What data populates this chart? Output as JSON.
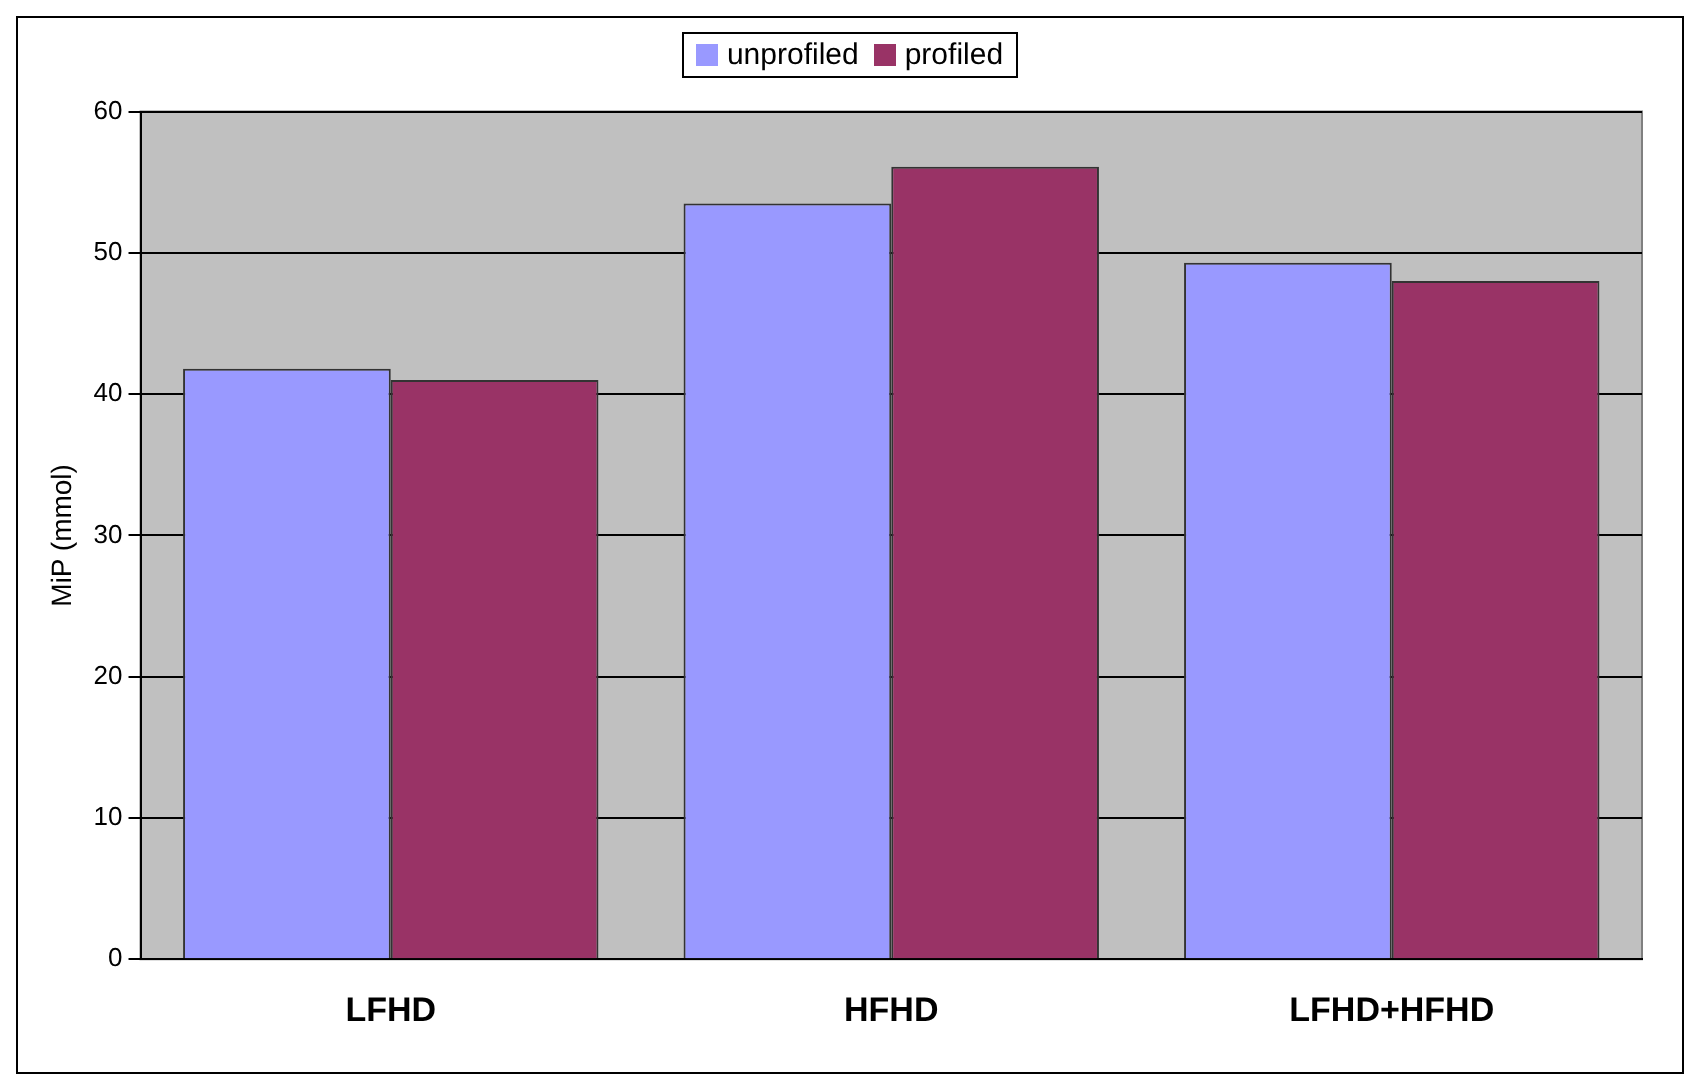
{
  "chart_data": {
    "type": "bar",
    "categories": [
      "LFHD",
      "HFHD",
      "LFHD+HFHD"
    ],
    "ylabel": "MiP (mmol)",
    "ylim": [
      0,
      60
    ],
    "yticks": [
      0,
      10,
      20,
      30,
      40,
      50,
      60
    ],
    "grid": "y",
    "legend": "top",
    "series": [
      {
        "name": "unprofiled",
        "color": "#9999ff",
        "values": [
          41.8,
          53.5,
          49.3
        ]
      },
      {
        "name": "profiled",
        "color": "#993366",
        "values": [
          41.0,
          56.1,
          48.0
        ]
      }
    ]
  }
}
